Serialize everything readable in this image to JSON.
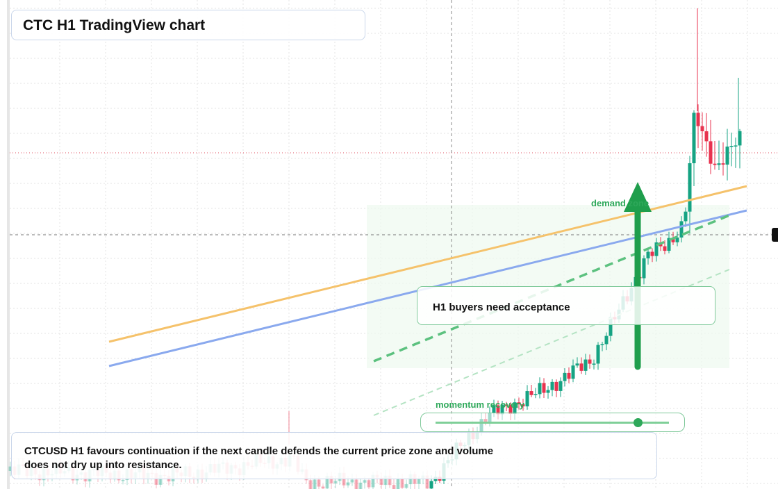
{
  "header": {
    "title": "CTC H1 TradingView chart"
  },
  "annotations": {
    "zone": "demand zone",
    "callout": "H1 buyers need acceptance",
    "slider": "momentum recovery"
  },
  "footer": {
    "note": "CTCUSD H1 favours continuation if the next candle defends the current price zone and volume does not dry up into resistance."
  }
}
